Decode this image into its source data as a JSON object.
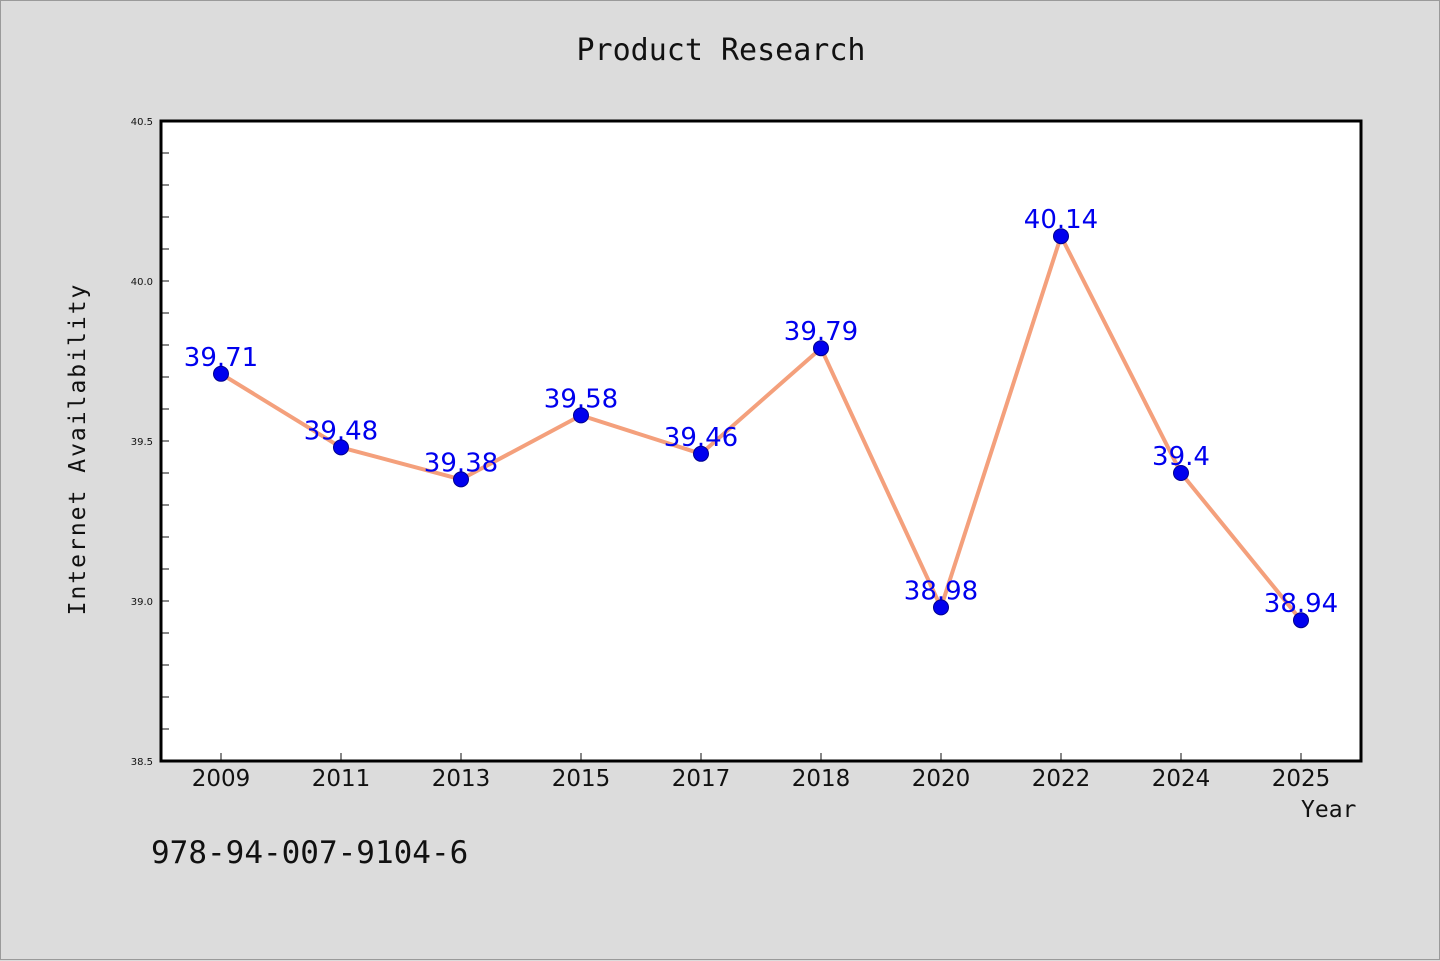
{
  "chart_data": {
    "type": "line",
    "title": "Product Research",
    "xlabel": "Year",
    "ylabel": "Internet Availability",
    "categories": [
      "2009",
      "2011",
      "2013",
      "2015",
      "2017",
      "2018",
      "2020",
      "2022",
      "2024",
      "2025"
    ],
    "series": [
      {
        "values": [
          39.71,
          39.48,
          39.38,
          39.58,
          39.46,
          39.79,
          38.98,
          40.14,
          39.4,
          38.94
        ],
        "labels": [
          "39.71",
          "39.48",
          "39.38",
          "39.58",
          "39.46",
          "39.79",
          "38.98",
          "40.14",
          "39.4",
          "38.94"
        ],
        "line_color": "#f4a07c",
        "marker_color": "#0000ee"
      }
    ],
    "ylim": [
      38.5,
      40.5
    ],
    "yticks": [
      "38.5",
      "39.0",
      "39.5",
      "40.0",
      "40.5"
    ],
    "grid": false,
    "legend": "none"
  },
  "footer": {
    "code": "978-94-007-9104-6"
  }
}
